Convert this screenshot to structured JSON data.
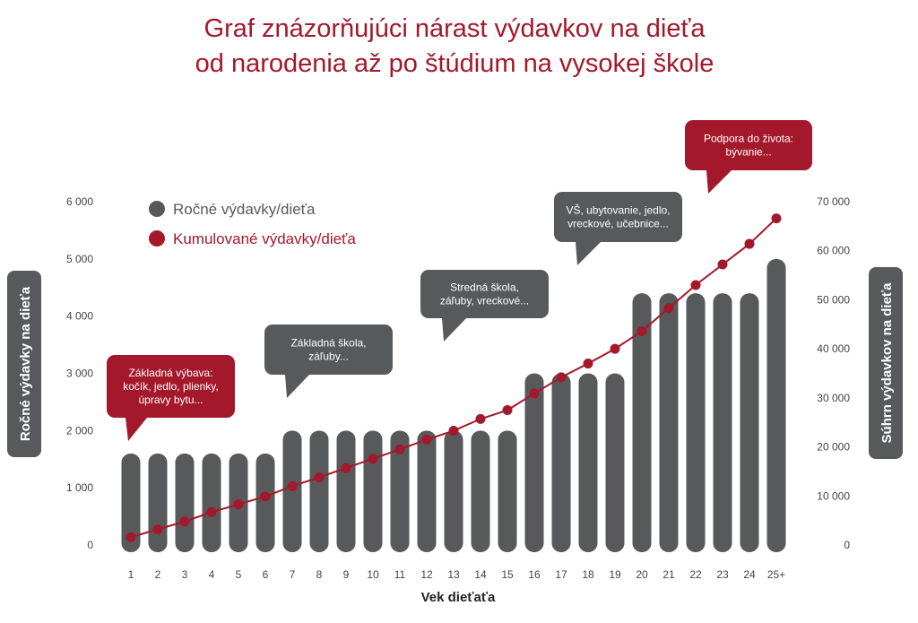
{
  "chart_data": {
    "type": "bar",
    "title_lines": [
      "Graf znázorňujúci nárast výdavkov na dieťa",
      "od narodenia až po štúdium na vysokej škole"
    ],
    "xlabel": "Vek dieťaťa",
    "ylabel_left": "Ročné výdavky na dieťa",
    "ylabel_right": "Súhrn výdavkov na dieťa",
    "categories": [
      "1",
      "2",
      "3",
      "4",
      "5",
      "6",
      "7",
      "8",
      "9",
      "10",
      "11",
      "12",
      "13",
      "14",
      "15",
      "16",
      "17",
      "18",
      "19",
      "20",
      "21",
      "22",
      "23",
      "24",
      "25+"
    ],
    "ylim_left": [
      0,
      6000
    ],
    "yticks_left": [
      "0",
      "1 000",
      "2 000",
      "3 000",
      "4 000",
      "5 000",
      "6 000"
    ],
    "ylim_right": [
      0,
      70000
    ],
    "yticks_right": [
      "0",
      "10 000",
      "20 000",
      "30 000",
      "40 000",
      "50 000",
      "60 000",
      "70 000"
    ],
    "series": [
      {
        "name": "Ročné výdavky/dieťa",
        "axis": "left",
        "style": "bar",
        "color": "#58595b",
        "values": [
          1600,
          1600,
          1600,
          1600,
          1600,
          1600,
          2000,
          2000,
          2000,
          2000,
          2000,
          2000,
          2000,
          2000,
          2000,
          3000,
          3000,
          3000,
          3000,
          4400,
          4400,
          4400,
          4400,
          4400,
          5000
        ]
      },
      {
        "name": "Kumulované výdavky/dieťa",
        "axis": "right",
        "style": "line",
        "color": "#a4182b",
        "values": [
          1600,
          3200,
          4800,
          6700,
          8300,
          9900,
          12000,
          13800,
          15700,
          17600,
          19500,
          21500,
          23300,
          25700,
          27500,
          30900,
          34200,
          37000,
          40000,
          43600,
          48300,
          53000,
          57200,
          61400,
          66600
        ]
      }
    ],
    "callouts": [
      {
        "lines": [
          "Základná výbava:",
          "kočík, jedlo, plienky,",
          "úpravy bytu..."
        ],
        "color": "#a4182b"
      },
      {
        "lines": [
          "Základná škola,",
          "záľuby..."
        ],
        "color": "#58595b"
      },
      {
        "lines": [
          "Stredná škola,",
          "záľuby, vreckové..."
        ],
        "color": "#58595b"
      },
      {
        "lines": [
          "VŠ, ubytovanie, jedlo,",
          "vreckové, učebnice..."
        ],
        "color": "#58595b"
      },
      {
        "lines": [
          "Podpora do života:",
          "bývanie..."
        ],
        "color": "#a4182b"
      }
    ],
    "legend_position": "top-left",
    "grid": false
  }
}
